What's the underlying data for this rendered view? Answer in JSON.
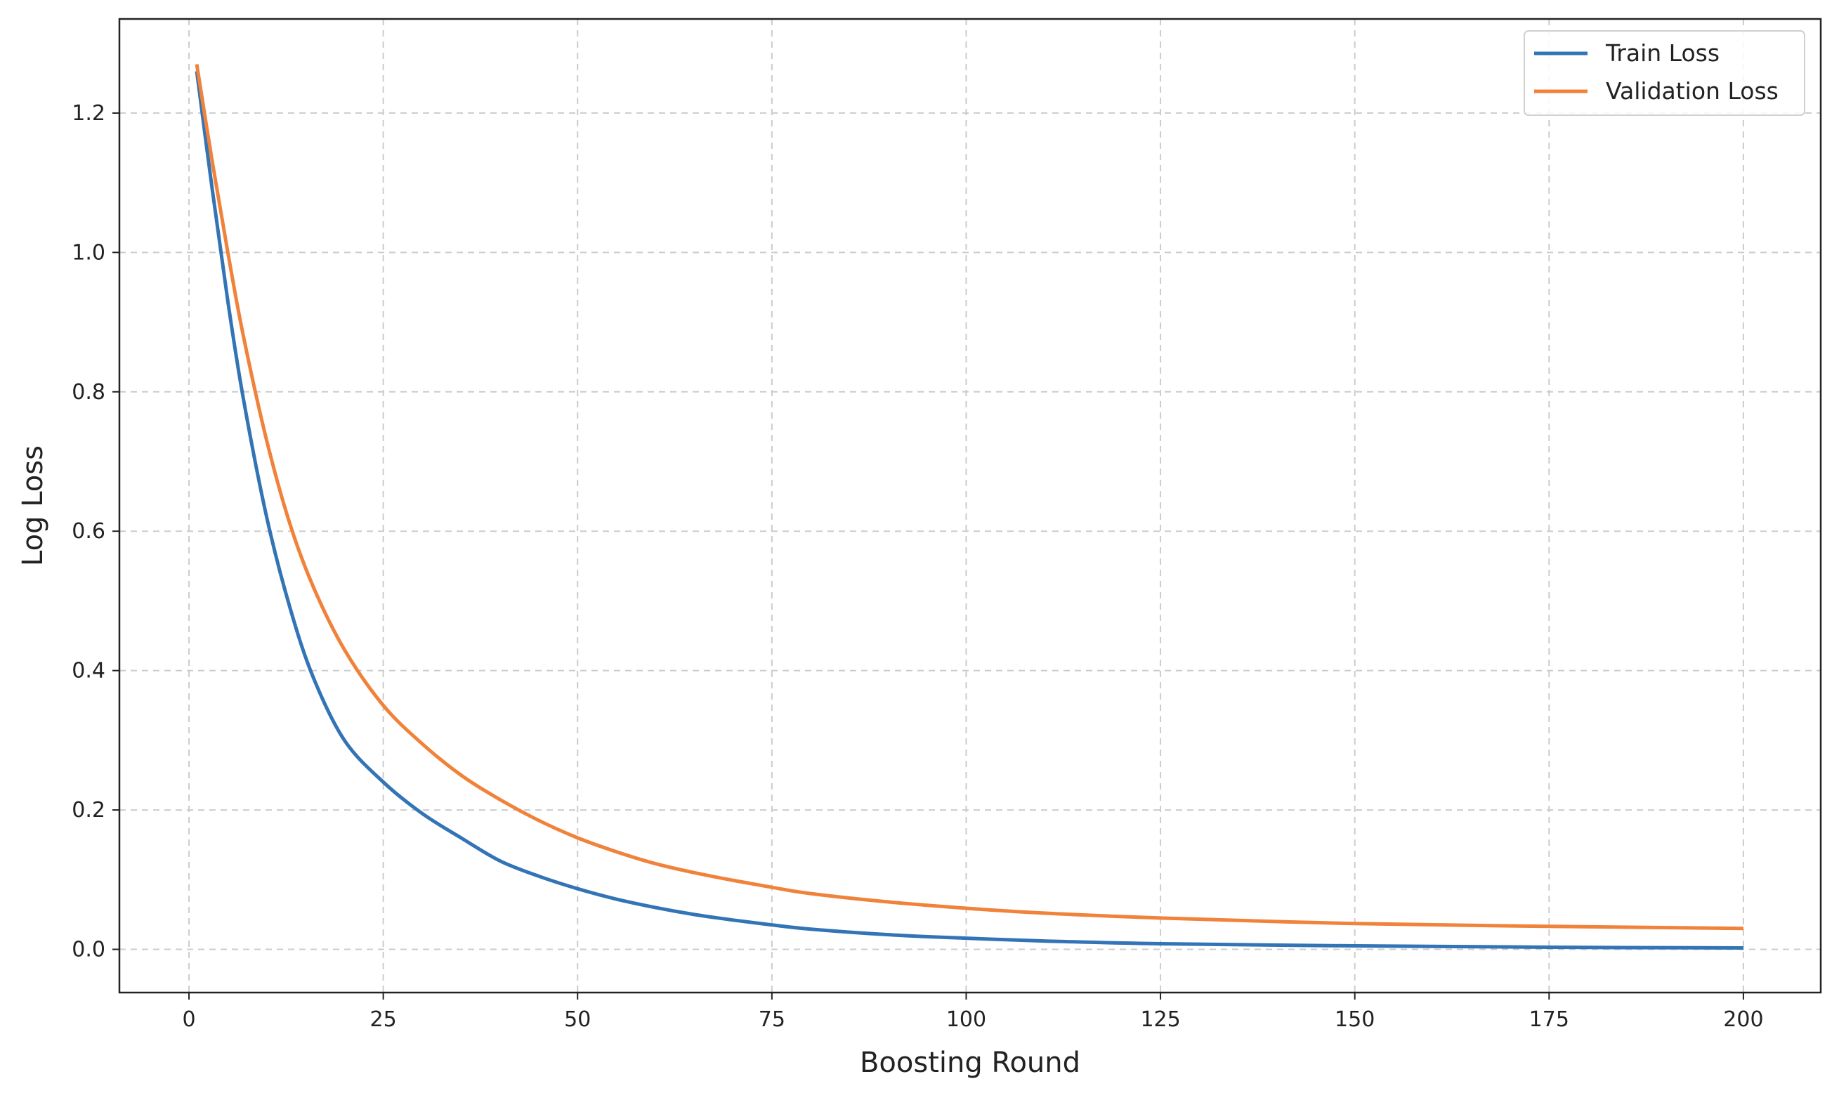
{
  "chart_data": {
    "type": "line",
    "title": "",
    "xlabel": "Boosting Round",
    "ylabel": "Log Loss",
    "xlim": [
      -8.95,
      209.95
    ],
    "ylim": [
      -0.062,
      1.335
    ],
    "x_ticks": [
      0,
      25,
      50,
      75,
      100,
      125,
      150,
      175,
      200
    ],
    "y_ticks": [
      0.0,
      0.2,
      0.4,
      0.6,
      0.8,
      1.0,
      1.2
    ],
    "y_tick_labels": [
      "0.0",
      "0.2",
      "0.4",
      "0.6",
      "0.8",
      "1.0",
      "1.2"
    ],
    "x_tick_labels": [
      "0",
      "25",
      "50",
      "75",
      "100",
      "125",
      "150",
      "175",
      "200"
    ],
    "grid": true,
    "legend": {
      "position": "top-right"
    },
    "x": [
      1,
      3,
      5,
      7,
      10,
      13,
      16,
      20,
      25,
      30,
      35,
      40,
      45,
      50,
      55,
      60,
      65,
      70,
      75,
      80,
      90,
      100,
      110,
      125,
      150,
      175,
      200
    ],
    "series": [
      {
        "name": "Train Loss",
        "color": "#3274b6",
        "values": [
          1.26,
          1.09,
          0.93,
          0.79,
          0.62,
          0.49,
          0.39,
          0.3,
          0.24,
          0.195,
          0.16,
          0.127,
          0.105,
          0.087,
          0.072,
          0.06,
          0.05,
          0.042,
          0.035,
          0.029,
          0.021,
          0.016,
          0.012,
          0.008,
          0.005,
          0.003,
          0.002
        ]
      },
      {
        "name": "Validation Loss",
        "color": "#f0823a",
        "values": [
          1.27,
          1.13,
          1.0,
          0.88,
          0.73,
          0.61,
          0.52,
          0.43,
          0.35,
          0.295,
          0.25,
          0.215,
          0.185,
          0.16,
          0.14,
          0.123,
          0.11,
          0.099,
          0.089,
          0.08,
          0.068,
          0.059,
          0.052,
          0.045,
          0.037,
          0.033,
          0.03
        ]
      }
    ]
  }
}
